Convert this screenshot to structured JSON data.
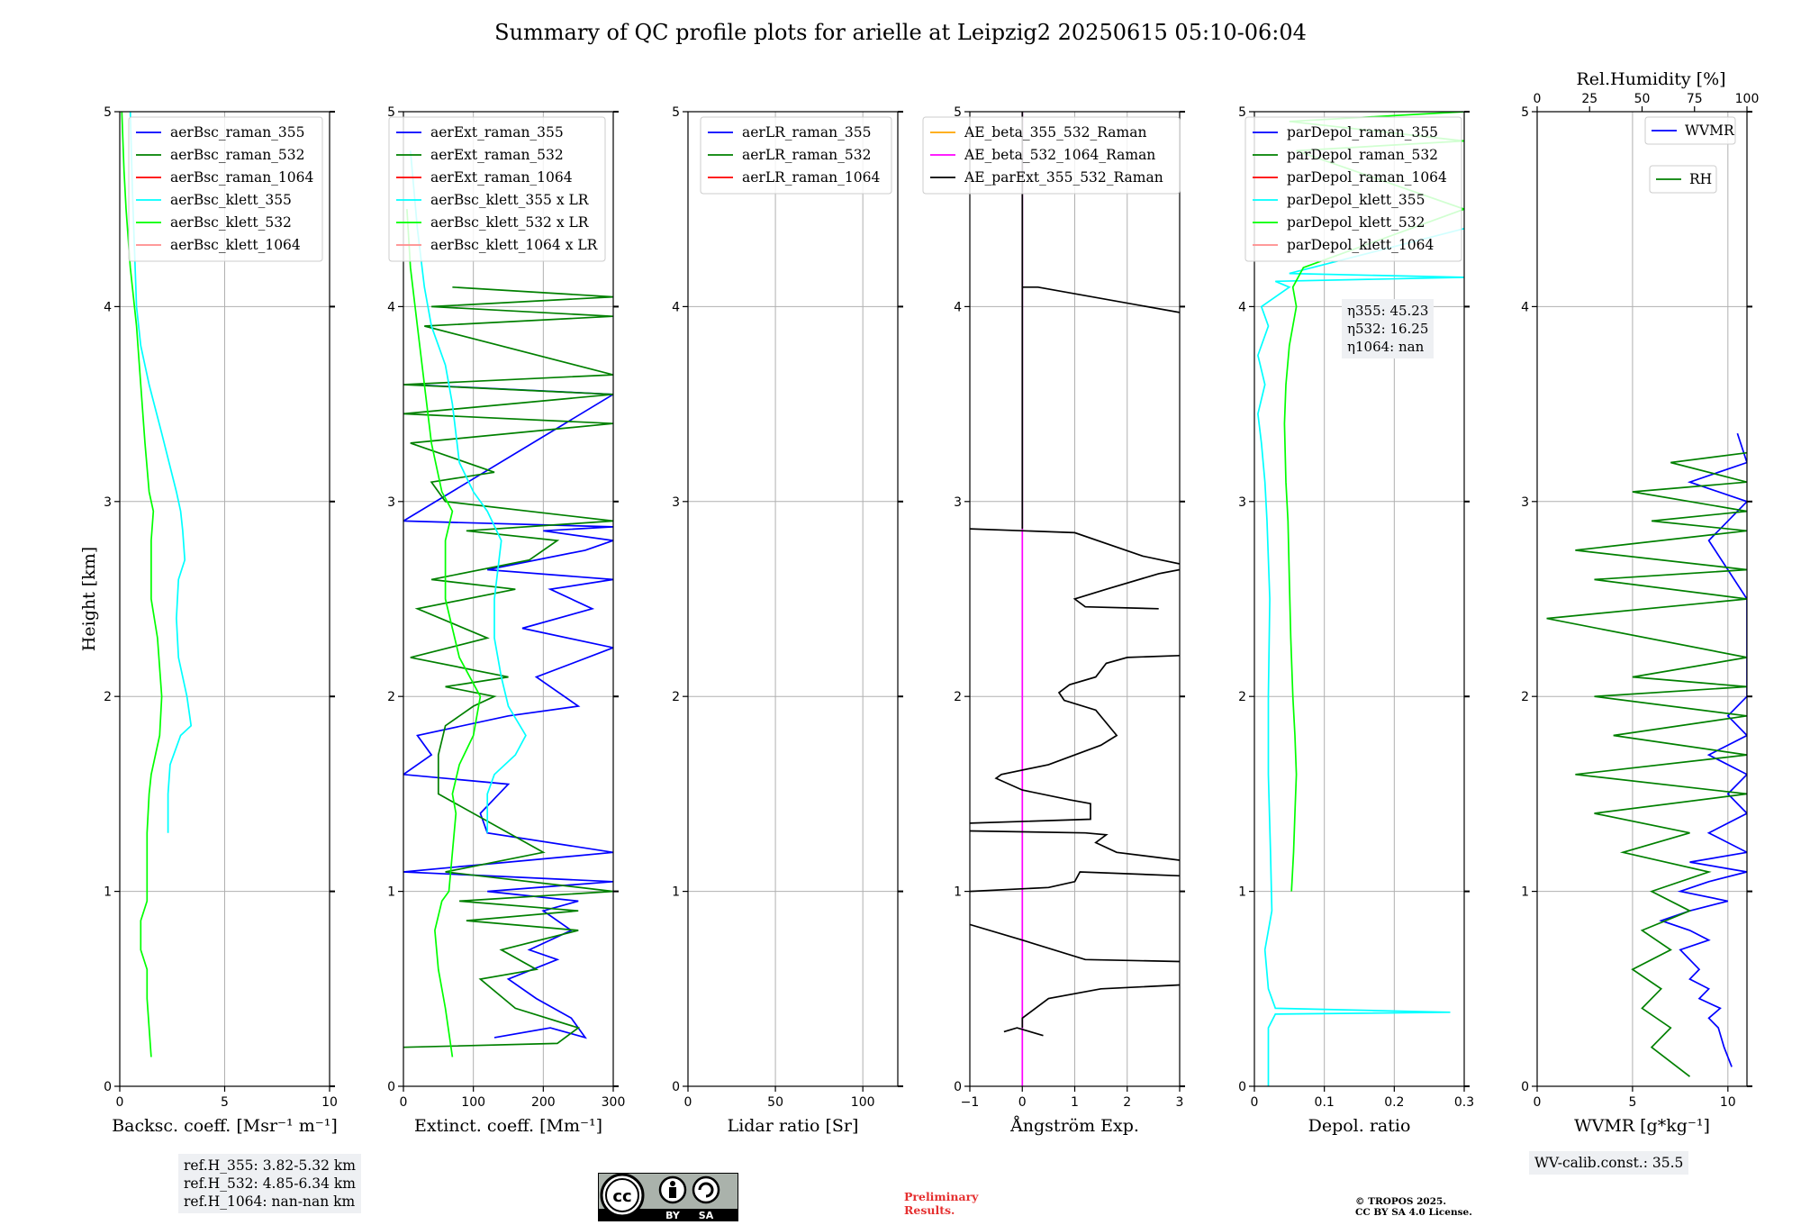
{
  "figure": {
    "title": "Summary of QC profile plots for arielle at Leipzig2 20250615 05:10-06:04",
    "ref_heights": [
      "ref.H_355: 3.82-5.32 km",
      "ref.H_532: 4.85-6.34 km",
      "ref.H_1064: nan-nan km"
    ],
    "eta": [
      "η355: 45.23",
      "η532: 16.25",
      "η1064: nan"
    ],
    "wv_calib": "WV-calib.const.: 35.5",
    "preliminary": [
      "Preliminary",
      "Results."
    ],
    "copyright": [
      "© TROPOS 2025.",
      "CC BY SA 4.0 License."
    ],
    "license_badge": [
      "BY",
      "SA"
    ],
    "license_logo": "cc-by-sa-icon"
  },
  "chart_data": [
    {
      "type": "line",
      "xlabel": "Backsc. coeff. [Msr⁻¹ m⁻¹]",
      "ylabel": "Height [km]",
      "xlim": [
        0,
        10
      ],
      "ylim": [
        0,
        5
      ],
      "xticks": [
        0,
        5,
        10
      ],
      "yticks": [
        0,
        1,
        2,
        3,
        4,
        5
      ],
      "grid": true,
      "legend": "top-right",
      "series": [
        {
          "name": "aerBsc_raman_355",
          "color": "#0000ff",
          "x": [],
          "y": []
        },
        {
          "name": "aerBsc_raman_532",
          "color": "#008000",
          "x": [],
          "y": []
        },
        {
          "name": "aerBsc_raman_1064",
          "color": "#ff0000",
          "x": [],
          "y": []
        },
        {
          "name": "aerBsc_klett_355",
          "color": "#00ffff",
          "x": [
            2.3,
            2.3,
            2.4,
            2.9,
            3.4,
            3.2,
            2.8,
            2.7,
            2.8,
            3.1,
            3.0,
            2.9,
            2.7,
            2.0,
            1.4,
            1.0,
            0.8,
            0.7,
            0.6,
            0.5
          ],
          "y": [
            1.3,
            1.5,
            1.65,
            1.8,
            1.85,
            2.0,
            2.2,
            2.4,
            2.6,
            2.7,
            2.85,
            2.95,
            3.05,
            3.35,
            3.6,
            3.8,
            4.0,
            4.3,
            4.6,
            5.0
          ]
        },
        {
          "name": "aerBsc_klett_532",
          "color": "#00ff00",
          "x": [
            1.5,
            1.3,
            1.3,
            1.0,
            1.0,
            1.3,
            1.3,
            1.3,
            1.4,
            1.5,
            1.9,
            2.0,
            1.8,
            1.5,
            1.5,
            1.6,
            1.4,
            1.2,
            1.0,
            0.8,
            0.5,
            0.3,
            0.2,
            0.1
          ],
          "y": [
            0.15,
            0.45,
            0.6,
            0.7,
            0.85,
            0.95,
            1.1,
            1.3,
            1.5,
            1.6,
            1.8,
            2.0,
            2.3,
            2.5,
            2.8,
            2.95,
            3.05,
            3.3,
            3.6,
            3.9,
            4.2,
            4.5,
            4.7,
            5.0
          ]
        },
        {
          "name": "aerBsc_klett_1064",
          "color": "#ff8c8c",
          "x": [],
          "y": []
        }
      ]
    },
    {
      "type": "line",
      "xlabel": "Extinct. coeff. [Mm⁻¹]",
      "ylabel": "",
      "xlim": [
        0,
        300
      ],
      "ylim": [
        0,
        5
      ],
      "xticks": [
        0,
        100,
        200,
        300
      ],
      "yticks": [
        0,
        1,
        2,
        3,
        4,
        5
      ],
      "grid": true,
      "legend": "top-right",
      "series": [
        {
          "name": "aerExt_raman_355",
          "color": "#0000ff",
          "x": [
            130,
            210,
            260,
            240,
            190,
            150,
            220,
            180,
            240,
            200,
            250,
            120,
            300,
            0,
            300,
            120,
            110,
            150,
            0,
            40,
            20,
            150,
            250,
            190,
            300,
            170,
            270,
            210,
            300,
            120,
            260,
            300,
            200,
            300,
            0,
            300,
            10
          ],
          "y": [
            0.25,
            0.3,
            0.25,
            0.35,
            0.45,
            0.55,
            0.65,
            0.7,
            0.8,
            0.9,
            0.95,
            1.0,
            1.05,
            1.1,
            1.2,
            1.3,
            1.4,
            1.55,
            1.6,
            1.7,
            1.8,
            1.9,
            1.95,
            2.1,
            2.25,
            2.35,
            2.45,
            2.55,
            2.6,
            2.65,
            2.75,
            2.8,
            2.85,
            2.87,
            2.9,
            3.55,
            3.6
          ]
        },
        {
          "name": "aerExt_raman_532",
          "color": "#008000",
          "x": [
            0,
            220,
            250,
            160,
            110,
            190,
            140,
            250,
            90,
            250,
            80,
            300,
            60,
            200,
            50,
            50,
            60,
            100,
            130,
            60,
            150,
            10,
            120,
            20,
            160,
            40,
            180,
            220,
            90,
            300,
            60,
            40,
            130,
            10,
            300,
            0,
            300,
            0,
            300,
            30,
            300,
            40,
            300,
            70
          ],
          "y": [
            0.2,
            0.22,
            0.3,
            0.4,
            0.55,
            0.6,
            0.7,
            0.8,
            0.85,
            0.9,
            0.95,
            1.0,
            1.1,
            1.2,
            1.5,
            1.7,
            1.85,
            1.95,
            2.0,
            2.05,
            2.1,
            2.2,
            2.3,
            2.45,
            2.55,
            2.6,
            2.7,
            2.8,
            2.85,
            2.9,
            3.0,
            3.1,
            3.15,
            3.3,
            3.4,
            3.45,
            3.55,
            3.6,
            3.65,
            3.9,
            3.95,
            4.0,
            4.05,
            4.1
          ]
        },
        {
          "name": "aerExt_raman_1064",
          "color": "#ff0000",
          "x": [],
          "y": []
        },
        {
          "name": "aerBsc_klett_355 x LR",
          "color": "#00ffff",
          "x": [
            120,
            120,
            130,
            160,
            175,
            150,
            140,
            130,
            130,
            140,
            120,
            100,
            80,
            70,
            60,
            40,
            30,
            20,
            10
          ],
          "y": [
            1.3,
            1.5,
            1.6,
            1.7,
            1.8,
            1.95,
            2.1,
            2.3,
            2.5,
            2.8,
            2.95,
            3.05,
            3.2,
            3.5,
            3.7,
            3.9,
            4.1,
            4.4,
            4.8
          ]
        },
        {
          "name": "aerBsc_klett_532 x LR",
          "color": "#00ff00",
          "x": [
            70,
            60,
            50,
            45,
            55,
            65,
            70,
            75,
            70,
            80,
            100,
            110,
            80,
            60,
            60,
            70,
            55,
            40,
            30,
            20,
            10,
            5
          ],
          "y": [
            0.15,
            0.4,
            0.6,
            0.8,
            0.95,
            1.0,
            1.2,
            1.4,
            1.5,
            1.65,
            1.8,
            2.0,
            2.2,
            2.5,
            2.8,
            2.95,
            3.05,
            3.3,
            3.6,
            3.9,
            4.2,
            4.5
          ]
        },
        {
          "name": "aerBsc_klett_1064 x LR",
          "color": "#ff8c8c",
          "x": [],
          "y": []
        }
      ]
    },
    {
      "type": "line",
      "xlabel": "Lidar ratio [Sr]",
      "ylabel": "",
      "xlim": [
        0,
        120
      ],
      "ylim": [
        0,
        5
      ],
      "xticks": [
        0,
        50,
        100
      ],
      "yticks": [
        0,
        1,
        2,
        3,
        4,
        5
      ],
      "grid": true,
      "legend": "top-right",
      "series": [
        {
          "name": "aerLR_raman_355",
          "color": "#0000ff",
          "x": [],
          "y": []
        },
        {
          "name": "aerLR_raman_532",
          "color": "#008000",
          "x": [],
          "y": []
        },
        {
          "name": "aerLR_raman_1064",
          "color": "#ff0000",
          "x": [],
          "y": []
        }
      ]
    },
    {
      "type": "line",
      "xlabel": "Ångström Exp.",
      "ylabel": "",
      "xlim": [
        -1,
        3
      ],
      "ylim": [
        0,
        5
      ],
      "xticks": [
        -1,
        0,
        1,
        2,
        3
      ],
      "yticks": [
        0,
        1,
        2,
        3,
        4,
        5
      ],
      "grid": true,
      "legend": "top-left",
      "series": [
        {
          "name": "AE_beta_355_532_Raman",
          "color": "#ffa500",
          "x": [],
          "y": []
        },
        {
          "name": "AE_beta_532_1064_Raman",
          "color": "#ff00ff",
          "x": [
            0,
            0
          ],
          "y": [
            0,
            5
          ]
        },
        {
          "name": "AE_parExt_355_532_Raman",
          "color": "#000000",
          "x": [
            -0.35,
            -0.1,
            0.4,
            null,
            0,
            0,
            0.5,
            1.5,
            3.0,
            null,
            3.0,
            1.2,
            0,
            -1.0,
            null,
            -1.0,
            0.5,
            1.0,
            1.1,
            3.0,
            null,
            3.0,
            1.8,
            1.4,
            1.6,
            1.2,
            -1.0,
            null,
            -1.0,
            1.3,
            1.3,
            0.9,
            0.0,
            -0.5,
            -0.4,
            0.5,
            1.5,
            1.8,
            1.4,
            0.8,
            0.7,
            0.9,
            1.4,
            1.6,
            2.0,
            3.0,
            null,
            2.6,
            1.2,
            1.0,
            1.6,
            2.6,
            3.0,
            null,
            3.0,
            2.3,
            1.0,
            -1.0,
            null,
            0,
            0,
            0.3,
            3.0,
            null,
            0,
            0,
            0
          ],
          "y": [
            0.28,
            0.3,
            0.26,
            null,
            0.3,
            0.35,
            0.45,
            0.5,
            0.52,
            null,
            0.64,
            0.65,
            0.75,
            0.83,
            null,
            1.0,
            1.02,
            1.05,
            1.1,
            1.08,
            null,
            1.16,
            1.2,
            1.25,
            1.29,
            1.3,
            1.31,
            null,
            1.35,
            1.37,
            1.45,
            1.47,
            1.52,
            1.58,
            1.6,
            1.65,
            1.75,
            1.8,
            1.93,
            1.98,
            2.02,
            2.06,
            2.1,
            2.17,
            2.2,
            2.21,
            null,
            2.45,
            2.46,
            2.5,
            2.55,
            2.63,
            2.65,
            null,
            2.68,
            2.72,
            2.84,
            2.86,
            null,
            2.86,
            4.1,
            4.1,
            3.97,
            null,
            4.1,
            4.6,
            5.0
          ]
        }
      ]
    },
    {
      "type": "line",
      "xlabel": "Depol. ratio",
      "ylabel": "",
      "xlim": [
        0.0,
        0.3
      ],
      "ylim": [
        0,
        5
      ],
      "xticks": [
        0.0,
        0.1,
        0.2,
        0.3
      ],
      "yticks": [
        0,
        1,
        2,
        3,
        4,
        5
      ],
      "grid": true,
      "legend": "top-right",
      "series": [
        {
          "name": "parDepol_raman_355",
          "color": "#0000ff",
          "x": [],
          "y": []
        },
        {
          "name": "parDepol_raman_532",
          "color": "#008000",
          "x": [],
          "y": []
        },
        {
          "name": "parDepol_raman_1064",
          "color": "#ff0000",
          "x": [],
          "y": []
        },
        {
          "name": "parDepol_klett_355",
          "color": "#00ffff",
          "x": [
            0.02,
            0.02,
            0.03,
            0.28,
            0.03,
            0.02,
            0.015,
            0.025,
            0.023,
            0.02,
            0.02,
            0.022,
            0.018,
            0.015,
            0.01,
            0.005,
            0.015,
            0.005,
            0.02,
            0.01,
            0.05,
            0.03,
            0.3,
            0.05,
            0.3
          ],
          "y": [
            0.0,
            0.3,
            0.37,
            0.38,
            0.4,
            0.5,
            0.7,
            0.9,
            1.2,
            1.6,
            2.0,
            2.5,
            2.9,
            3.1,
            3.3,
            3.45,
            3.6,
            3.75,
            3.9,
            4.0,
            4.1,
            4.13,
            4.15,
            4.17,
            4.4
          ]
        },
        {
          "name": "parDepol_klett_532",
          "color": "#00ff00",
          "x": [
            0.053,
            0.056,
            0.058,
            0.06,
            0.058,
            0.055,
            0.052,
            0.05,
            0.048,
            0.045,
            0.043,
            0.045,
            0.05,
            0.055,
            0.06,
            0.055,
            0.07,
            0.3,
            0.06,
            0.3,
            0.05,
            0.3
          ],
          "y": [
            1.0,
            1.2,
            1.4,
            1.6,
            1.8,
            2.0,
            2.3,
            2.6,
            2.9,
            3.1,
            3.4,
            3.6,
            3.8,
            3.9,
            4.0,
            4.1,
            4.2,
            4.5,
            4.8,
            4.85,
            4.95,
            5.0
          ]
        },
        {
          "name": "parDepol_klett_1064",
          "color": "#ff8c8c",
          "x": [],
          "y": []
        }
      ]
    },
    {
      "type": "line",
      "xlabel": "WVMR [g*kg⁻¹]",
      "ylabel": "",
      "xlim": [
        0,
        11
      ],
      "ylim": [
        0,
        5
      ],
      "xticks": [
        0,
        5,
        10
      ],
      "yticks": [
        0,
        1,
        2,
        3,
        4,
        5
      ],
      "x2label": "Rel.Humidity [%]",
      "x2lim": [
        0,
        100
      ],
      "x2ticks": [
        0,
        25,
        50,
        75,
        100
      ],
      "grid": true,
      "legend": "top-right",
      "series": [
        {
          "name": "WVMR",
          "color": "#0000ff",
          "x": [
            10.2,
            9.8,
            9.5,
            9.0,
            9.6,
            8.5,
            9.0,
            8.0,
            8.5,
            7.5,
            9.0,
            8.0,
            6.5,
            8.0,
            10.0,
            7.5,
            9.0,
            11.0,
            8.0,
            11.0,
            9.0,
            11.0,
            10.0,
            11.0,
            9.0,
            11.0,
            10.0,
            11.0,
            11.0,
            9.0,
            11.0,
            8.0,
            11.0,
            10.5
          ],
          "y": [
            0.1,
            0.2,
            0.3,
            0.35,
            0.4,
            0.45,
            0.5,
            0.55,
            0.6,
            0.7,
            0.75,
            0.8,
            0.85,
            0.9,
            0.95,
            1.0,
            1.05,
            1.1,
            1.15,
            1.2,
            1.3,
            1.4,
            1.5,
            1.6,
            1.7,
            1.8,
            1.9,
            2.0,
            2.5,
            2.8,
            3.0,
            3.1,
            3.2,
            3.35
          ]
        },
        {
          "name": "RH",
          "color": "#008000",
          "x": [
            8.0,
            6.0,
            7.0,
            5.5,
            6.5,
            5.0,
            7.0,
            5.5,
            8.0,
            6.0,
            9.0,
            4.5,
            8.0,
            3.0,
            11.0,
            2.0,
            11.0,
            4.0,
            11.0,
            3.0,
            11.0,
            5.0,
            11.0,
            0.5,
            11.0,
            3.0,
            11.0,
            2.0,
            11.0,
            6.0,
            11.0,
            5.0,
            11.0,
            7.0,
            11.0
          ],
          "y": [
            0.05,
            0.2,
            0.3,
            0.4,
            0.5,
            0.6,
            0.7,
            0.8,
            0.9,
            1.0,
            1.1,
            1.2,
            1.3,
            1.4,
            1.5,
            1.6,
            1.7,
            1.8,
            1.9,
            2.0,
            2.05,
            2.1,
            2.2,
            2.4,
            2.5,
            2.6,
            2.65,
            2.75,
            2.85,
            2.9,
            2.95,
            3.05,
            3.1,
            3.2,
            3.25
          ]
        }
      ]
    }
  ]
}
